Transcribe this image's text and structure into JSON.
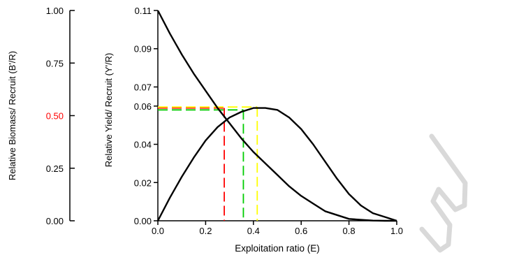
{
  "chart_data": {
    "type": "line",
    "x": [
      0.0,
      0.05,
      0.1,
      0.15,
      0.2,
      0.25,
      0.3,
      0.35,
      0.4,
      0.45,
      0.5,
      0.55,
      0.6,
      0.65,
      0.7,
      0.75,
      0.8,
      0.85,
      0.9,
      0.95,
      1.0
    ],
    "series": [
      {
        "values": [
          0.11,
          0.098,
          0.087,
          0.077,
          0.068,
          0.059,
          0.051,
          0.043,
          0.036,
          0.03,
          0.024,
          0.018,
          0.013,
          0.009,
          0.005,
          0.003,
          0.001,
          0.0005,
          0.0001,
          0.0,
          0.0
        ]
      },
      {
        "values": [
          0.0,
          0.012,
          0.023,
          0.033,
          0.042,
          0.049,
          0.054,
          0.057,
          0.059,
          0.059,
          0.058,
          0.054,
          0.048,
          0.04,
          0.031,
          0.022,
          0.014,
          0.008,
          0.004,
          0.002,
          0.0
        ]
      }
    ],
    "reference_lines": [
      {
        "color": "#ff0000",
        "x": 0.278,
        "y": 0.059
      },
      {
        "color": "#00cc00",
        "x": 0.358,
        "y": 0.058
      },
      {
        "color": "#ffff00",
        "x": 0.416,
        "y": 0.0595
      }
    ],
    "xlabel": "Exploitation ratio (E)",
    "ylabel": "Relative Yield/ Recruit (Y'/R)",
    "y2label": "Relative Biomass/ Recruit (B'/R)",
    "xlim": [
      0,
      1
    ],
    "ylim": [
      0,
      0.11
    ],
    "y2lim": [
      0,
      1
    ],
    "xticks": [
      {
        "value": 0.0,
        "label": "0.0"
      },
      {
        "value": 0.2,
        "label": "0.2"
      },
      {
        "value": 0.4,
        "label": "0.4"
      },
      {
        "value": 0.6,
        "label": "0.6"
      },
      {
        "value": 0.8,
        "label": "0.8"
      },
      {
        "value": 1.0,
        "label": "1.0"
      }
    ],
    "yticks": [
      {
        "value": 0.0,
        "label": "0.00"
      },
      {
        "value": 0.02,
        "label": "0.02"
      },
      {
        "value": 0.04,
        "label": "0.04"
      },
      {
        "value": 0.06,
        "label": "0.06"
      },
      {
        "value": 0.07,
        "label": "0.07"
      },
      {
        "value": 0.09,
        "label": "0.09"
      },
      {
        "value": 0.11,
        "label": "0.11"
      }
    ],
    "y2ticks": [
      {
        "value": 0.0,
        "label": "0.00",
        "color": "#000000"
      },
      {
        "value": 0.25,
        "label": "0.25",
        "color": "#000000"
      },
      {
        "value": 0.5,
        "label": "0.50",
        "color": "#ff0000"
      },
      {
        "value": 0.75,
        "label": "0.75",
        "color": "#000000"
      },
      {
        "value": 1.0,
        "label": "1.00",
        "color": "#000000"
      }
    ],
    "grid": false,
    "legend": "none",
    "colors": {
      "axis": "#000000",
      "curve": "#000000",
      "watermark": "#d9d9d9"
    }
  }
}
